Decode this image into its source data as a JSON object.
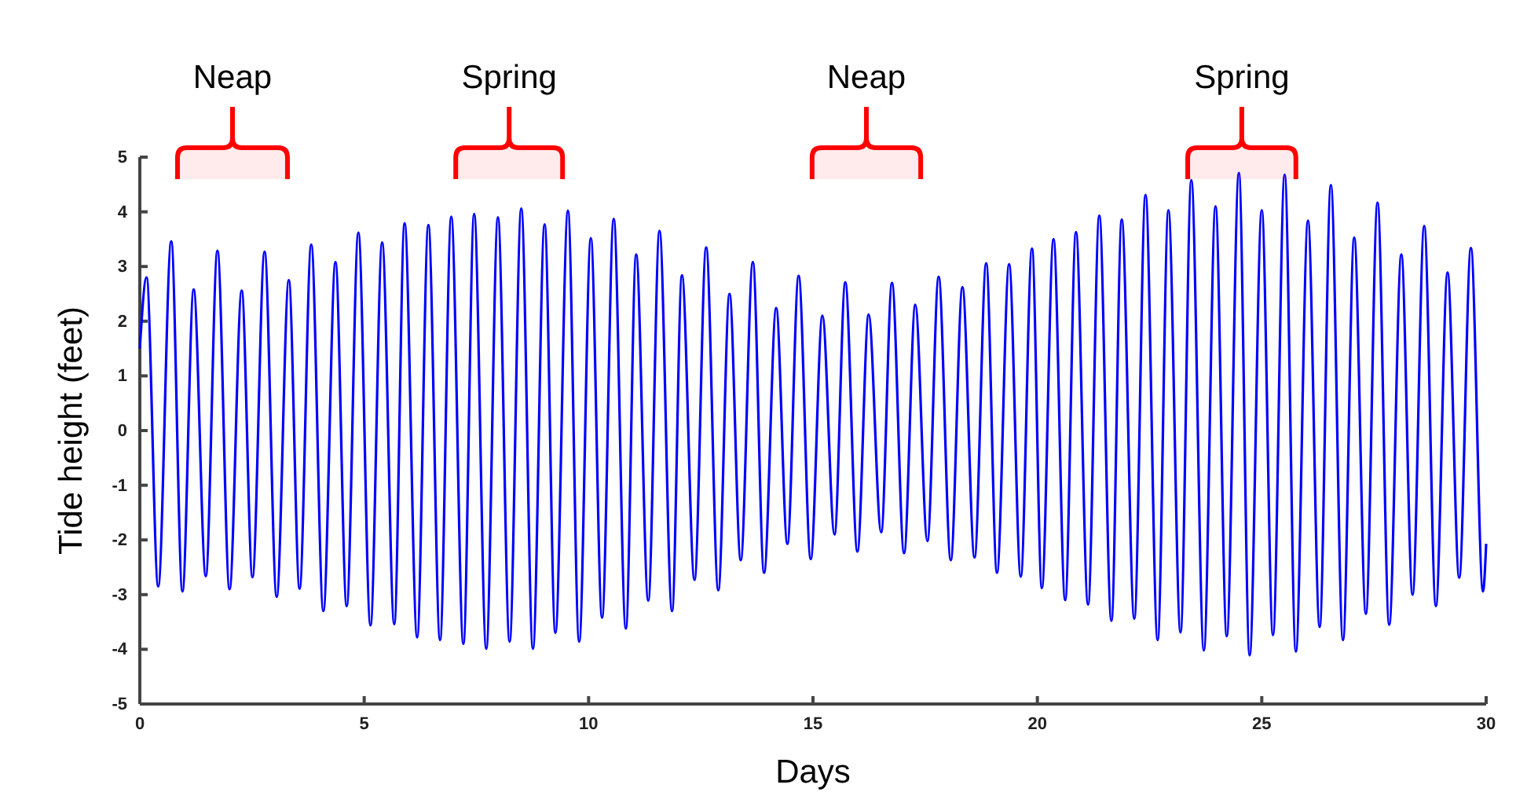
{
  "chart_data": {
    "type": "line",
    "xlabel": "Days",
    "ylabel": "Tide height (feet)",
    "xlim": [
      0,
      30
    ],
    "ylim": [
      -5,
      5
    ],
    "xticks": [
      0,
      5,
      10,
      15,
      20,
      25,
      30
    ],
    "yticks": [
      -5,
      -4,
      -3,
      -2,
      -1,
      0,
      1,
      2,
      3,
      4,
      5
    ],
    "grid": false,
    "marker": "none",
    "line_style": "solid",
    "bands": [
      {
        "axis": "x",
        "from": 0.84,
        "to": 3.29,
        "label": "Neap",
        "color": "#ff0000"
      },
      {
        "axis": "x",
        "from": 7.04,
        "to": 9.42,
        "label": "Spring",
        "color": "#ff0000"
      },
      {
        "axis": "x",
        "from": 14.98,
        "to": 17.4,
        "label": "Neap",
        "color": "#ff0000"
      },
      {
        "axis": "x",
        "from": 23.35,
        "to": 25.76,
        "label": "Spring",
        "color": "#ff0000"
      }
    ],
    "series": [
      {
        "color": "#0000ff",
        "x": [
          0,
          0.15,
          0.41,
          0.7,
          0.95,
          1.2,
          1.47,
          1.73,
          2.0,
          2.27,
          2.51,
          2.78,
          3.05,
          3.32,
          3.56,
          3.82,
          4.09,
          4.36,
          4.61,
          4.87,
          5.14,
          5.4,
          5.67,
          5.9,
          6.18,
          6.43,
          6.69,
          6.94,
          7.21,
          7.45,
          7.72,
          7.98,
          8.24,
          8.5,
          8.76,
          9.02,
          9.26,
          9.54,
          9.79,
          10.05,
          10.3,
          10.56,
          10.83,
          11.06,
          11.33,
          11.58,
          11.86,
          12.08,
          12.36,
          12.62,
          12.89,
          13.14,
          13.39,
          13.66,
          13.91,
          14.18,
          14.43,
          14.68,
          14.95,
          15.21,
          15.48,
          15.72,
          15.99,
          16.24,
          16.52,
          16.76,
          17.03,
          17.28,
          17.55,
          17.8,
          18.07,
          18.33,
          18.6,
          18.86,
          19.1,
          19.37,
          19.63,
          19.88,
          20.1,
          20.36,
          20.62,
          20.86,
          21.13,
          21.38,
          21.65,
          21.88,
          22.16,
          22.41,
          22.68,
          22.92,
          23.19,
          23.43,
          23.71,
          23.97,
          24.22,
          24.49,
          24.73,
          25.0,
          25.25,
          25.51,
          25.76,
          26.03,
          26.29,
          26.54,
          26.81,
          27.06,
          27.32,
          27.58,
          27.84,
          28.11,
          28.36,
          28.62,
          28.88,
          29.14,
          29.4,
          29.66,
          29.93,
          30
        ],
        "values": [
          1.5,
          2.8,
          -2.85,
          3.46,
          -2.94,
          2.58,
          -2.66,
          3.29,
          -2.9,
          2.56,
          -2.68,
          3.27,
          -3.04,
          2.75,
          -2.89,
          3.4,
          -3.3,
          3.08,
          -3.21,
          3.62,
          -3.56,
          3.44,
          -3.54,
          3.79,
          -3.78,
          3.76,
          -3.83,
          3.91,
          -3.9,
          3.96,
          -3.99,
          3.9,
          -3.86,
          4.06,
          -3.99,
          3.77,
          -3.7,
          4.02,
          -3.86,
          3.52,
          -3.42,
          3.87,
          -3.62,
          3.22,
          -3.11,
          3.65,
          -3.3,
          2.84,
          -2.73,
          3.35,
          -2.92,
          2.5,
          -2.37,
          3.08,
          -2.6,
          2.24,
          -2.07,
          2.83,
          -2.35,
          2.1,
          -1.9,
          2.71,
          -2.21,
          2.12,
          -1.86,
          2.7,
          -2.24,
          2.3,
          -2.02,
          2.81,
          -2.37,
          2.62,
          -2.32,
          3.06,
          -2.6,
          3.04,
          -2.67,
          3.33,
          -2.88,
          3.5,
          -3.1,
          3.63,
          -3.18,
          3.93,
          -3.48,
          3.86,
          -3.44,
          4.31,
          -3.83,
          4.03,
          -3.69,
          4.58,
          -4.02,
          4.1,
          -3.76,
          4.71,
          -4.11,
          4.03,
          -3.74,
          4.68,
          -4.04,
          3.84,
          -3.59,
          4.49,
          -3.83,
          3.53,
          -3.35,
          4.17,
          -3.55,
          3.22,
          -3.0,
          3.74,
          -3.21,
          2.89,
          -2.69,
          3.34,
          -2.94,
          -2.07
        ]
      }
    ]
  }
}
